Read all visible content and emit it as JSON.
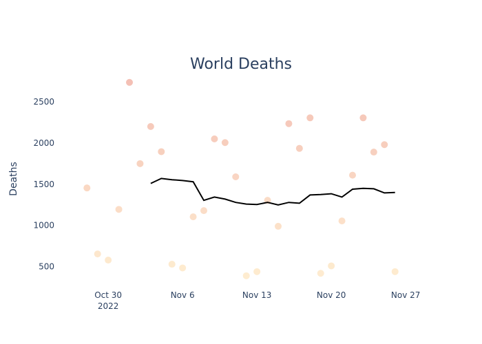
{
  "chart_data": {
    "type": "scatter",
    "title": "World Deaths",
    "xlabel": "",
    "ylabel": "Deaths",
    "xlim": [
      "2022-10-25",
      "2022-11-29"
    ],
    "ylim": [
      230,
      2900
    ],
    "grid": false,
    "legend": "none",
    "x_ticks": [
      {
        "date": "2022-10-30",
        "label": "Oct 30",
        "sublabel": "2022"
      },
      {
        "date": "2022-11-06",
        "label": "Nov 6",
        "sublabel": ""
      },
      {
        "date": "2022-11-13",
        "label": "Nov 13",
        "sublabel": ""
      },
      {
        "date": "2022-11-20",
        "label": "Nov 20",
        "sublabel": ""
      },
      {
        "date": "2022-11-27",
        "label": "Nov 27",
        "sublabel": ""
      }
    ],
    "y_ticks": [
      500,
      1000,
      1500,
      2000,
      2500
    ],
    "series": [
      {
        "type": "scatter",
        "color_scale": [
          "#fee9c8",
          "#f2b5a8"
        ],
        "points": [
          {
            "x": "2022-10-28",
            "y": 1455
          },
          {
            "x": "2022-10-29",
            "y": 655
          },
          {
            "x": "2022-10-30",
            "y": 580
          },
          {
            "x": "2022-10-31",
            "y": 1195
          },
          {
            "x": "2022-11-01",
            "y": 2735
          },
          {
            "x": "2022-11-02",
            "y": 1750
          },
          {
            "x": "2022-11-03",
            "y": 2200
          },
          {
            "x": "2022-11-04",
            "y": 1895
          },
          {
            "x": "2022-11-05",
            "y": 530
          },
          {
            "x": "2022-11-06",
            "y": 485
          },
          {
            "x": "2022-11-07",
            "y": 1105
          },
          {
            "x": "2022-11-08",
            "y": 1180
          },
          {
            "x": "2022-11-09",
            "y": 2050
          },
          {
            "x": "2022-11-10",
            "y": 2005
          },
          {
            "x": "2022-11-11",
            "y": 1590
          },
          {
            "x": "2022-11-12",
            "y": 390
          },
          {
            "x": "2022-11-13",
            "y": 440
          },
          {
            "x": "2022-11-14",
            "y": 1305
          },
          {
            "x": "2022-11-15",
            "y": 990
          },
          {
            "x": "2022-11-16",
            "y": 2235
          },
          {
            "x": "2022-11-17",
            "y": 1935
          },
          {
            "x": "2022-11-18",
            "y": 2305
          },
          {
            "x": "2022-11-19",
            "y": 420
          },
          {
            "x": "2022-11-20",
            "y": 510
          },
          {
            "x": "2022-11-21",
            "y": 1055
          },
          {
            "x": "2022-11-22",
            "y": 1610
          },
          {
            "x": "2022-11-23",
            "y": 2305
          },
          {
            "x": "2022-11-24",
            "y": 1890
          },
          {
            "x": "2022-11-25",
            "y": 1980
          },
          {
            "x": "2022-11-26",
            "y": 440
          }
        ]
      },
      {
        "type": "line",
        "color": "#000000",
        "points": [
          {
            "x": "2022-11-03",
            "y": 1510
          },
          {
            "x": "2022-11-04",
            "y": 1570
          },
          {
            "x": "2022-11-05",
            "y": 1555
          },
          {
            "x": "2022-11-06",
            "y": 1545
          },
          {
            "x": "2022-11-07",
            "y": 1530
          },
          {
            "x": "2022-11-08",
            "y": 1305
          },
          {
            "x": "2022-11-09",
            "y": 1345
          },
          {
            "x": "2022-11-10",
            "y": 1320
          },
          {
            "x": "2022-11-11",
            "y": 1280
          },
          {
            "x": "2022-11-12",
            "y": 1260
          },
          {
            "x": "2022-11-13",
            "y": 1255
          },
          {
            "x": "2022-11-14",
            "y": 1280
          },
          {
            "x": "2022-11-15",
            "y": 1250
          },
          {
            "x": "2022-11-16",
            "y": 1280
          },
          {
            "x": "2022-11-17",
            "y": 1270
          },
          {
            "x": "2022-11-18",
            "y": 1370
          },
          {
            "x": "2022-11-19",
            "y": 1375
          },
          {
            "x": "2022-11-20",
            "y": 1385
          },
          {
            "x": "2022-11-21",
            "y": 1345
          },
          {
            "x": "2022-11-22",
            "y": 1440
          },
          {
            "x": "2022-11-23",
            "y": 1450
          },
          {
            "x": "2022-11-24",
            "y": 1445
          },
          {
            "x": "2022-11-25",
            "y": 1395
          },
          {
            "x": "2022-11-26",
            "y": 1400
          }
        ]
      }
    ]
  }
}
